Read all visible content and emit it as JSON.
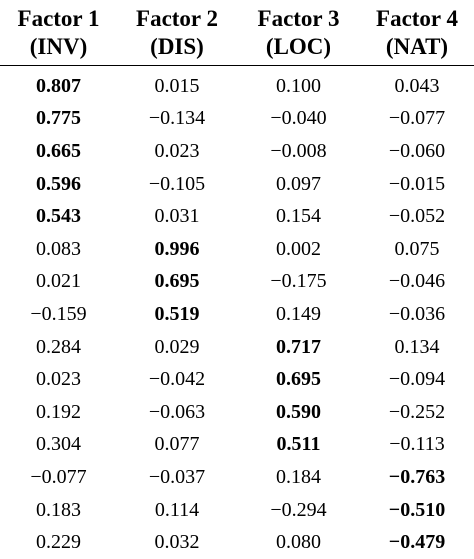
{
  "header": {
    "row1": [
      "Factor 1",
      "Factor 2",
      "Factor 3",
      "Factor 4"
    ],
    "row2": [
      "(INV)",
      "(DIS)",
      "(LOC)",
      "(NAT)"
    ]
  },
  "rows": [
    [
      "0.807",
      "0.015",
      "0.100",
      "0.043"
    ],
    [
      "0.775",
      "-0.134",
      "-0.040",
      "-0.077"
    ],
    [
      "0.665",
      "0.023",
      "-0.008",
      "-0.060"
    ],
    [
      "0.596",
      "-0.105",
      "0.097",
      "-0.015"
    ],
    [
      "0.543",
      "0.031",
      "0.154",
      "-0.052"
    ],
    [
      "0.083",
      "0.996",
      "0.002",
      "0.075"
    ],
    [
      "0.021",
      "0.695",
      "-0.175",
      "-0.046"
    ],
    [
      "-0.159",
      "0.519",
      "0.149",
      "-0.036"
    ],
    [
      "0.284",
      "0.029",
      "0.717",
      "0.134"
    ],
    [
      "0.023",
      "-0.042",
      "0.695",
      "-0.094"
    ],
    [
      "0.192",
      "-0.063",
      "0.590",
      "-0.252"
    ],
    [
      "0.304",
      "0.077",
      "0.511",
      "-0.113"
    ],
    [
      "-0.077",
      "-0.037",
      "0.184",
      "-0.763"
    ],
    [
      "0.183",
      "0.114",
      "-0.294",
      "-0.510"
    ],
    [
      "0.229",
      "0.032",
      "0.080",
      "-0.479"
    ]
  ]
}
